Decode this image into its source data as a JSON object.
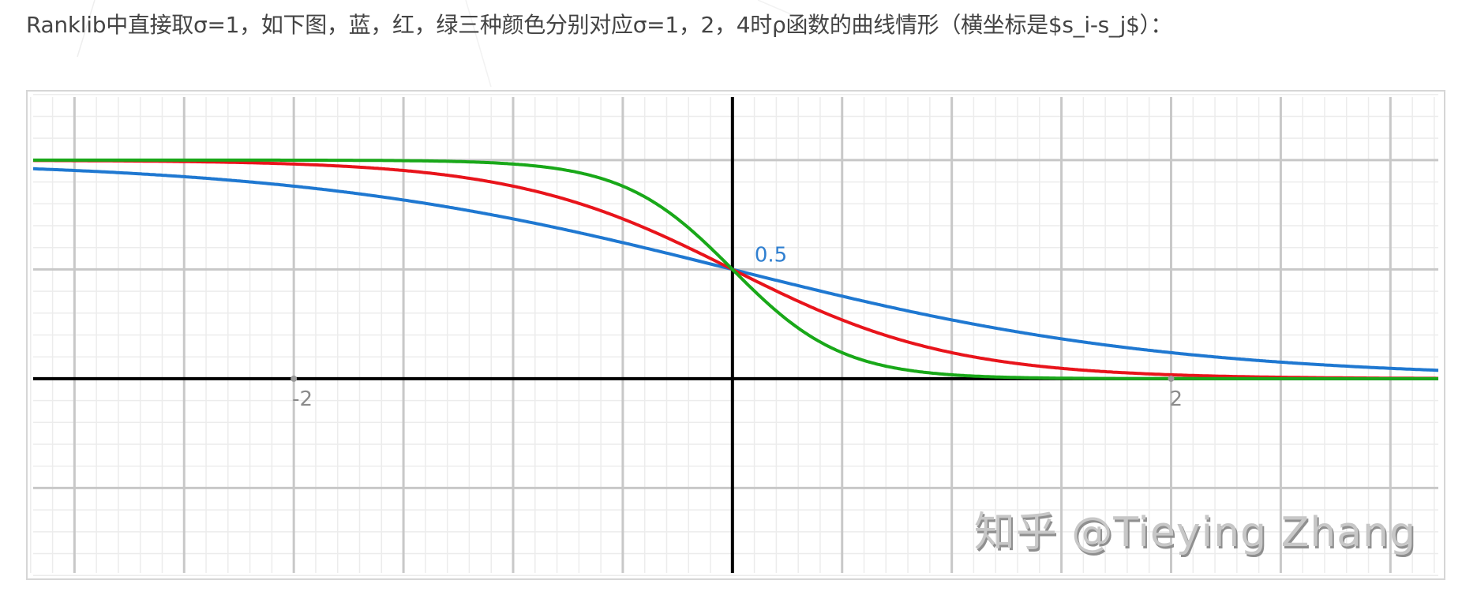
{
  "caption": "Ranklib中直接取σ=1，如下图，蓝，红，绿三种颜色分别对应σ=1，2，4时ρ函数的曲线情形（横坐标是$s_i-s_j$）：",
  "watermark": "知乎 @Tieying Zhang",
  "colors": {
    "sigma1": "#1f78d1",
    "sigma2": "#e8141b",
    "sigma4": "#19a819",
    "axis": "#000000",
    "major_grid": "#c8c8c8",
    "minor_grid": "#ececec",
    "annotation": "#2f7fd0",
    "tick_label": "#8a8a8a"
  },
  "chart_data": {
    "type": "line",
    "title": "",
    "function": "rho(x) = 1 / (1 + exp(sigma * x))",
    "xlabel": "s_i - s_j",
    "ylabel": "",
    "xlim": [
      -3.21,
      3.24
    ],
    "ylim": [
      -0.91,
      1.31
    ],
    "grid": true,
    "major_grid_step": 0.5,
    "minor_grid_step": 0.1,
    "legend": "none (colors described in caption)",
    "x_tick_labels": [
      {
        "x": -2,
        "label": "-2"
      },
      {
        "x": 2,
        "label": "2"
      }
    ],
    "annotations": [
      {
        "x": 0,
        "y": 0.5,
        "text": "0.5"
      }
    ],
    "x": [
      -3,
      -2.5,
      -2,
      -1.5,
      -1,
      -0.5,
      0,
      0.5,
      1,
      1.5,
      2,
      2.5,
      3
    ],
    "series": [
      {
        "name": "σ=1",
        "color": "blue",
        "sigma": 1,
        "values": [
          0.953,
          0.924,
          0.881,
          0.818,
          0.731,
          0.622,
          0.5,
          0.378,
          0.269,
          0.182,
          0.119,
          0.076,
          0.047
        ]
      },
      {
        "name": "σ=2",
        "color": "red",
        "sigma": 2,
        "values": [
          0.998,
          0.993,
          0.982,
          0.953,
          0.881,
          0.731,
          0.5,
          0.269,
          0.119,
          0.047,
          0.018,
          0.007,
          0.002
        ]
      },
      {
        "name": "σ=4",
        "color": "green",
        "sigma": 4,
        "values": [
          1.0,
          1.0,
          1.0,
          0.998,
          0.982,
          0.881,
          0.5,
          0.119,
          0.018,
          0.002,
          0.0,
          0.0,
          0.0
        ]
      }
    ]
  }
}
